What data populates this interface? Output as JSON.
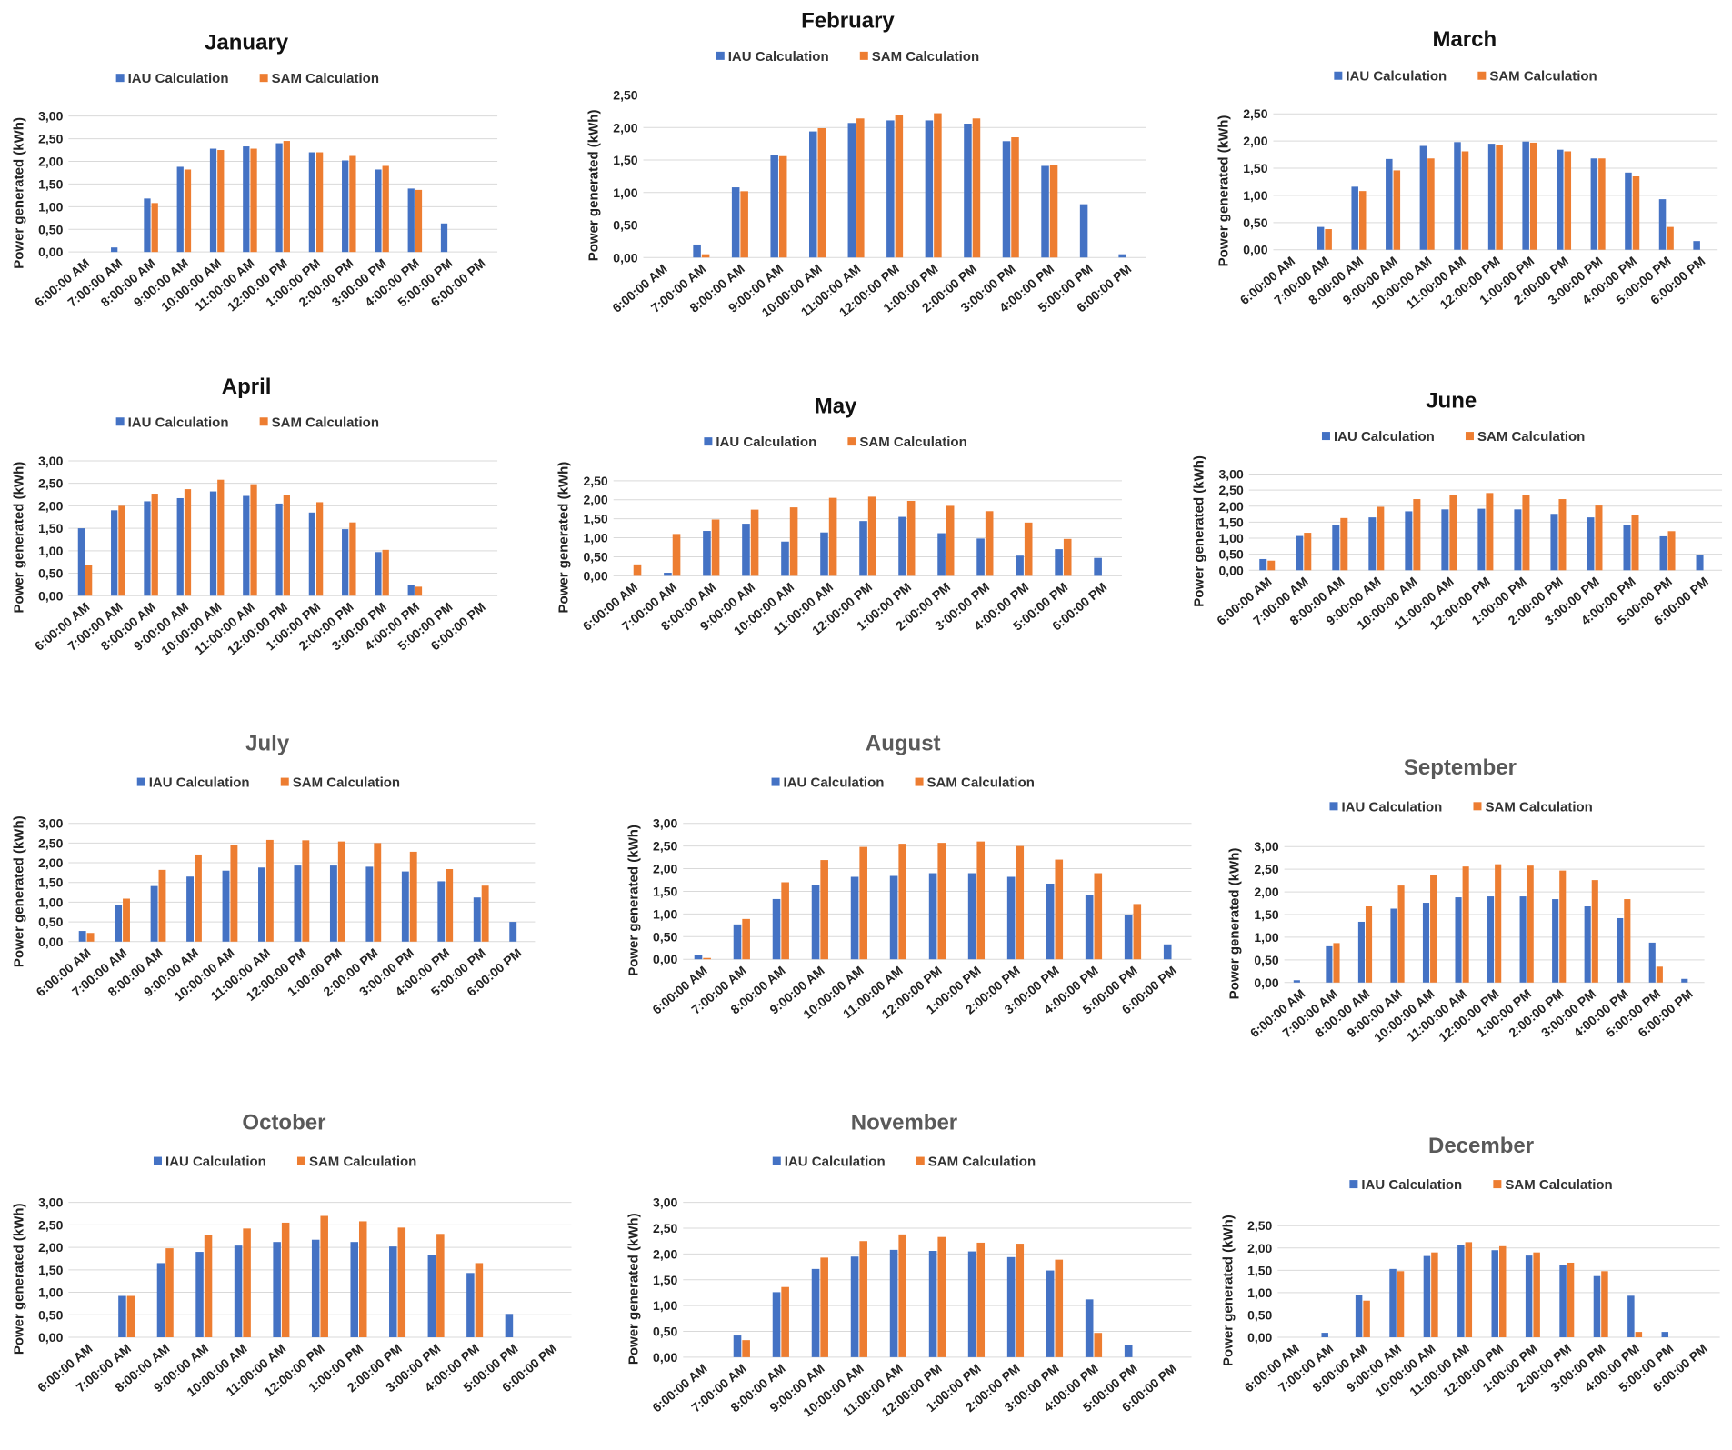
{
  "legend": {
    "iau": "IAU Calculation",
    "sam": "SAM Calculation"
  },
  "colors": {
    "iau": "#4472C4",
    "sam": "#ED7D31",
    "title_dark": "#111111",
    "title_grey": "#595959"
  },
  "chart_data": [
    {
      "type": "bar",
      "title": "January",
      "title_style": "dark",
      "ylabel": "Power generated (kWh)",
      "xlabel": "",
      "ylim": [
        0,
        3
      ],
      "yticks": [
        "0,00",
        "0,50",
        "1,00",
        "1,50",
        "2,00",
        "2,50",
        "3,00"
      ],
      "categories": [
        "6:00:00 AM",
        "7:00:00 AM",
        "8:00:00 AM",
        "9:00:00 AM",
        "10:00:00 AM",
        "11:00:00 AM",
        "12:00:00 PM",
        "1:00:00 PM",
        "2:00:00 PM",
        "3:00:00 PM",
        "4:00:00 PM",
        "5:00:00 PM",
        "6:00:00 PM"
      ],
      "series": [
        {
          "name": "IAU Calculation",
          "values": [
            0,
            0.1,
            1.18,
            1.88,
            2.28,
            2.33,
            2.4,
            2.2,
            2.02,
            1.82,
            1.4,
            0.63,
            0
          ]
        },
        {
          "name": "SAM Calculation",
          "values": [
            0,
            0,
            1.08,
            1.82,
            2.25,
            2.28,
            2.45,
            2.2,
            2.12,
            1.9,
            1.37,
            0,
            0
          ]
        }
      ]
    },
    {
      "type": "bar",
      "title": "February",
      "title_style": "dark",
      "ylabel": "Power generated (kWh)",
      "xlabel": "",
      "ylim": [
        0,
        2.5
      ],
      "yticks": [
        "0,00",
        "0,50",
        "1,00",
        "1,50",
        "2,00",
        "2,50"
      ],
      "categories": [
        "6:00:00 AM",
        "7:00:00 AM",
        "8:00:00 AM",
        "9:00:00 AM",
        "10:00:00 AM",
        "11:00:00 AM",
        "12:00:00 PM",
        "1:00:00 PM",
        "2:00:00 PM",
        "3:00:00 PM",
        "4:00:00 PM",
        "5:00:00 PM",
        "6:00:00 PM"
      ],
      "series": [
        {
          "name": "IAU Calculation",
          "values": [
            0,
            0.2,
            1.08,
            1.58,
            1.94,
            2.07,
            2.11,
            2.11,
            2.06,
            1.79,
            1.41,
            0.82,
            0.05
          ]
        },
        {
          "name": "SAM Calculation",
          "values": [
            0,
            0.05,
            1.02,
            1.56,
            1.99,
            2.14,
            2.2,
            2.22,
            2.14,
            1.85,
            1.42,
            0,
            0
          ]
        }
      ]
    },
    {
      "type": "bar",
      "title": "March",
      "title_style": "dark",
      "ylabel": "Power generated (kWh)",
      "xlabel": "",
      "ylim": [
        0,
        2.5
      ],
      "yticks": [
        "0,00",
        "0,50",
        "1,00",
        "1,50",
        "2,00",
        "2,50"
      ],
      "categories": [
        "6:00:00 AM",
        "7:00:00 AM",
        "8:00:00 AM",
        "9:00:00 AM",
        "10:00:00 AM",
        "11:00:00 AM",
        "12:00:00 PM",
        "1:00:00 PM",
        "2:00:00 PM",
        "3:00:00 PM",
        "4:00:00 PM",
        "5:00:00 PM",
        "6:00:00 PM"
      ],
      "series": [
        {
          "name": "IAU Calculation",
          "values": [
            0,
            0.42,
            1.16,
            1.67,
            1.91,
            1.98,
            1.95,
            1.99,
            1.84,
            1.68,
            1.42,
            0.93,
            0.16
          ]
        },
        {
          "name": "SAM Calculation",
          "values": [
            0,
            0.38,
            1.08,
            1.46,
            1.68,
            1.81,
            1.93,
            1.97,
            1.81,
            1.68,
            1.35,
            0.42,
            0
          ]
        }
      ]
    },
    {
      "type": "bar",
      "title": "April",
      "title_style": "dark",
      "ylabel": "Power generated (kWh)",
      "xlabel": "",
      "ylim": [
        0,
        3
      ],
      "yticks": [
        "0,00",
        "0,50",
        "1,00",
        "1,50",
        "2,00",
        "2,50",
        "3,00"
      ],
      "categories": [
        "6:00:00 AM",
        "7:00:00 AM",
        "8:00:00 AM",
        "9:00:00 AM",
        "10:00:00 AM",
        "11:00:00 AM",
        "12:00:00 PM",
        "1:00:00 PM",
        "2:00:00 PM",
        "3:00:00 PM",
        "4:00:00 PM",
        "5:00:00 PM",
        "6:00:00 PM"
      ],
      "series": [
        {
          "name": "IAU Calculation",
          "values": [
            1.5,
            1.9,
            2.1,
            2.17,
            2.32,
            2.22,
            2.05,
            1.85,
            1.48,
            0.97,
            0.24,
            0,
            0
          ]
        },
        {
          "name": "SAM Calculation",
          "values": [
            0.68,
            2.0,
            2.27,
            2.37,
            2.58,
            2.48,
            2.25,
            2.08,
            1.63,
            1.02,
            0.2,
            0,
            0
          ]
        }
      ]
    },
    {
      "type": "bar",
      "title": "May",
      "title_style": "dark",
      "ylabel": "Power generated (kWh)",
      "xlabel": "",
      "ylim": [
        0,
        2.5
      ],
      "yticks": [
        "0,00",
        "0,50",
        "1,00",
        "1,50",
        "2,00",
        "2,50"
      ],
      "categories": [
        "6:00:00 AM",
        "7:00:00 AM",
        "8:00:00 AM",
        "9:00:00 AM",
        "10:00:00 AM",
        "11:00:00 AM",
        "12:00:00 PM",
        "1:00:00 PM",
        "2:00:00 PM",
        "3:00:00 PM",
        "4:00:00 PM",
        "5:00:00 PM",
        "6:00:00 PM"
      ],
      "series": [
        {
          "name": "IAU Calculation",
          "values": [
            0,
            0.08,
            1.18,
            1.37,
            0.9,
            1.14,
            1.44,
            1.55,
            1.12,
            0.98,
            0.53,
            0.7,
            0.47
          ]
        },
        {
          "name": "SAM Calculation",
          "values": [
            0.3,
            1.1,
            1.48,
            1.74,
            1.8,
            2.05,
            2.08,
            1.97,
            1.84,
            1.7,
            1.4,
            0.97,
            0
          ]
        }
      ]
    },
    {
      "type": "bar",
      "title": "June",
      "title_style": "dark",
      "ylabel": "Power generated (kWh)",
      "xlabel": "",
      "ylim": [
        0,
        3
      ],
      "yticks": [
        "0,00",
        "0,50",
        "1,00",
        "1,50",
        "2,00",
        "2,50",
        "3,00"
      ],
      "categories": [
        "6:00:00 AM",
        "7:00:00 AM",
        "8:00:00 AM",
        "9:00:00 AM",
        "10:00:00 AM",
        "11:00:00 AM",
        "12:00:00 PM",
        "1:00:00 PM",
        "2:00:00 PM",
        "3:00:00 PM",
        "4:00:00 PM",
        "5:00:00 PM",
        "6:00:00 PM"
      ],
      "series": [
        {
          "name": "IAU Calculation",
          "values": [
            0.35,
            1.07,
            1.41,
            1.65,
            1.84,
            1.9,
            1.92,
            1.9,
            1.76,
            1.65,
            1.42,
            1.06,
            0.48
          ]
        },
        {
          "name": "SAM Calculation",
          "values": [
            0.3,
            1.17,
            1.63,
            1.98,
            2.22,
            2.36,
            2.41,
            2.36,
            2.22,
            2.02,
            1.72,
            1.22,
            0
          ]
        }
      ]
    },
    {
      "type": "bar",
      "title": "July",
      "title_style": "grey",
      "ylabel": "Power generated (kWh)",
      "xlabel": "",
      "ylim": [
        0,
        3
      ],
      "yticks": [
        "0,00",
        "0,50",
        "1,00",
        "1,50",
        "2,00",
        "2,50",
        "3,00"
      ],
      "categories": [
        "6:00:00 AM",
        "7:00:00 AM",
        "8:00:00 AM",
        "9:00:00 AM",
        "10:00:00 AM",
        "11:00:00 AM",
        "12:00:00 PM",
        "1:00:00 PM",
        "2:00:00 PM",
        "3:00:00 PM",
        "4:00:00 PM",
        "5:00:00 PM",
        "6:00:00 PM"
      ],
      "series": [
        {
          "name": "IAU Calculation",
          "values": [
            0.27,
            0.93,
            1.41,
            1.65,
            1.8,
            1.88,
            1.93,
            1.93,
            1.9,
            1.78,
            1.53,
            1.12,
            0.5
          ]
        },
        {
          "name": "SAM Calculation",
          "values": [
            0.22,
            1.09,
            1.82,
            2.21,
            2.45,
            2.58,
            2.57,
            2.54,
            2.5,
            2.28,
            1.84,
            1.42,
            0
          ]
        }
      ]
    },
    {
      "type": "bar",
      "title": "August",
      "title_style": "grey",
      "ylabel": "Power generated (kWh)",
      "xlabel": "",
      "ylim": [
        0,
        3
      ],
      "yticks": [
        "0,00",
        "0,50",
        "1,00",
        "1,50",
        "2,00",
        "2,50",
        "3,00"
      ],
      "categories": [
        "6:00:00 AM",
        "7:00:00 AM",
        "8:00:00 AM",
        "9:00:00 AM",
        "10:00:00 AM",
        "11:00:00 AM",
        "12:00:00 PM",
        "1:00:00 PM",
        "2:00:00 PM",
        "3:00:00 PM",
        "4:00:00 PM",
        "5:00:00 PM",
        "6:00:00 PM"
      ],
      "series": [
        {
          "name": "IAU Calculation",
          "values": [
            0.1,
            0.77,
            1.33,
            1.64,
            1.82,
            1.84,
            1.9,
            1.9,
            1.82,
            1.67,
            1.42,
            0.98,
            0.33
          ]
        },
        {
          "name": "SAM Calculation",
          "values": [
            0.03,
            0.89,
            1.7,
            2.19,
            2.48,
            2.55,
            2.57,
            2.6,
            2.5,
            2.2,
            1.9,
            1.22,
            0
          ]
        }
      ]
    },
    {
      "type": "bar",
      "title": "September",
      "title_style": "grey",
      "ylabel": "Power generated (kWh)",
      "xlabel": "",
      "ylim": [
        0,
        3
      ],
      "yticks": [
        "0,00",
        "0,50",
        "1,00",
        "1,50",
        "2,00",
        "2,50",
        "3,00"
      ],
      "categories": [
        "6:00:00 AM",
        "7:00:00 AM",
        "8:00:00 AM",
        "9:00:00 AM",
        "10:00:00 AM",
        "11:00:00 AM",
        "12:00:00 PM",
        "1:00:00 PM",
        "2:00:00 PM",
        "3:00:00 PM",
        "4:00:00 PM",
        "5:00:00 PM",
        "6:00:00 PM"
      ],
      "series": [
        {
          "name": "IAU Calculation",
          "values": [
            0.05,
            0.8,
            1.34,
            1.63,
            1.76,
            1.88,
            1.9,
            1.9,
            1.84,
            1.68,
            1.42,
            0.88,
            0.08
          ]
        },
        {
          "name": "SAM Calculation",
          "values": [
            0,
            0.87,
            1.68,
            2.14,
            2.38,
            2.56,
            2.61,
            2.58,
            2.47,
            2.26,
            1.84,
            0.35,
            0
          ]
        }
      ]
    },
    {
      "type": "bar",
      "title": "October",
      "title_style": "grey",
      "ylabel": "Power generated (kWh)",
      "xlabel": "",
      "ylim": [
        0,
        3
      ],
      "yticks": [
        "0,00",
        "0,50",
        "1,00",
        "1,50",
        "2,00",
        "2,50",
        "3,00"
      ],
      "categories": [
        "6:00:00 AM",
        "7:00:00 AM",
        "8:00:00 AM",
        "9:00:00 AM",
        "10:00:00 AM",
        "11:00:00 AM",
        "12:00:00 PM",
        "1:00:00 PM",
        "2:00:00 PM",
        "3:00:00 PM",
        "4:00:00 PM",
        "5:00:00 PM",
        "6:00:00 PM"
      ],
      "series": [
        {
          "name": "IAU Calculation",
          "values": [
            0,
            0.92,
            1.65,
            1.9,
            2.04,
            2.12,
            2.17,
            2.12,
            2.02,
            1.84,
            1.43,
            0.52,
            0
          ]
        },
        {
          "name": "SAM Calculation",
          "values": [
            0,
            0.92,
            1.98,
            2.28,
            2.42,
            2.55,
            2.7,
            2.58,
            2.44,
            2.3,
            1.65,
            0,
            0
          ]
        }
      ]
    },
    {
      "type": "bar",
      "title": "November",
      "title_style": "grey",
      "ylabel": "Power generated (kWh)",
      "xlabel": "",
      "ylim": [
        0,
        3
      ],
      "yticks": [
        "0,00",
        "0,50",
        "1,00",
        "1,50",
        "2,00",
        "2,50",
        "3,00"
      ],
      "categories": [
        "6:00:00 AM",
        "7:00:00 AM",
        "8:00:00 AM",
        "9:00:00 AM",
        "10:00:00 AM",
        "11:00:00 AM",
        "12:00:00 PM",
        "1:00:00 PM",
        "2:00:00 PM",
        "3:00:00 PM",
        "4:00:00 PM",
        "5:00:00 PM",
        "6:00:00 PM"
      ],
      "series": [
        {
          "name": "IAU Calculation",
          "values": [
            0,
            0.42,
            1.26,
            1.71,
            1.95,
            2.08,
            2.06,
            2.05,
            1.94,
            1.68,
            1.12,
            0.23,
            0
          ]
        },
        {
          "name": "SAM Calculation",
          "values": [
            0,
            0.33,
            1.36,
            1.93,
            2.25,
            2.38,
            2.33,
            2.22,
            2.2,
            1.89,
            0.47,
            0,
            0
          ]
        }
      ]
    },
    {
      "type": "bar",
      "title": "December",
      "title_style": "grey",
      "ylabel": "Power generated (kWh)",
      "xlabel": "",
      "ylim": [
        0,
        2.5
      ],
      "yticks": [
        "0,00",
        "0,50",
        "1,00",
        "1,50",
        "2,00",
        "2,50"
      ],
      "categories": [
        "6:00:00 AM",
        "7:00:00 AM",
        "8:00:00 AM",
        "9:00:00 AM",
        "10:00:00 AM",
        "11:00:00 AM",
        "12:00:00 PM",
        "1:00:00 PM",
        "2:00:00 PM",
        "3:00:00 PM",
        "4:00:00 PM",
        "5:00:00 PM",
        "6:00:00 PM"
      ],
      "series": [
        {
          "name": "IAU Calculation",
          "values": [
            0,
            0.1,
            0.95,
            1.53,
            1.82,
            2.07,
            1.95,
            1.83,
            1.62,
            1.37,
            0.93,
            0.12,
            0
          ]
        },
        {
          "name": "SAM Calculation",
          "values": [
            0,
            0,
            0.82,
            1.48,
            1.9,
            2.13,
            2.04,
            1.9,
            1.67,
            1.48,
            0.12,
            0,
            0
          ]
        }
      ]
    }
  ]
}
